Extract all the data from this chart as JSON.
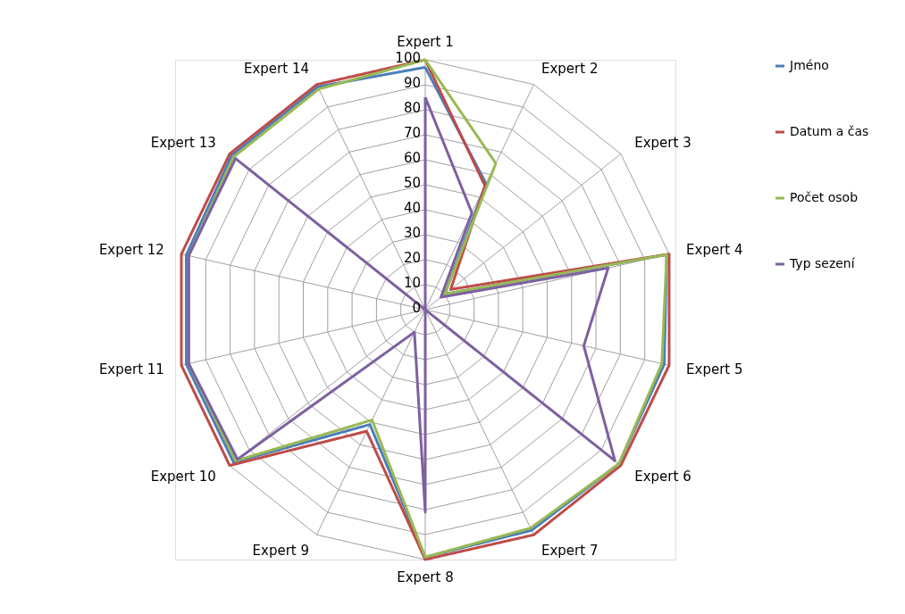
{
  "chart_data": {
    "type": "radar",
    "categories": [
      "Expert 1",
      "Expert 2",
      "Expert 3",
      "Expert 4",
      "Expert 5",
      "Expert 6",
      "Expert 7",
      "Expert 8",
      "Expert 9",
      "Expert 10",
      "Expert 11",
      "Expert 12",
      "Expert 13",
      "Expert 14"
    ],
    "series": [
      {
        "name": "Jméno",
        "color": "#4a7ebb",
        "values": [
          97,
          56,
          10,
          99,
          98,
          99,
          98,
          99,
          51,
          98,
          98,
          98,
          99,
          99
        ]
      },
      {
        "name": "Datum a čas",
        "color": "#be4b48",
        "values": [
          100,
          55,
          13,
          100,
          100,
          100,
          100,
          100,
          54,
          100,
          100,
          100,
          100,
          100
        ]
      },
      {
        "name": "Počet osob",
        "color": "#98b954",
        "values": [
          100,
          65,
          10,
          99,
          97,
          99,
          97,
          99,
          49,
          97,
          97,
          97,
          98,
          98
        ]
      },
      {
        "name": "Typ sezení",
        "color": "#7d60a0",
        "values": [
          85,
          43,
          8,
          75,
          65,
          97,
          0,
          81,
          10,
          96,
          97,
          97,
          97,
          0
        ]
      }
    ],
    "ylim": [
      0,
      100
    ],
    "yticks": [
      0,
      10,
      20,
      30,
      40,
      50,
      60,
      70,
      80,
      90,
      100
    ],
    "grid": true,
    "legend": "right",
    "line_style": "solid",
    "marker": "none"
  }
}
